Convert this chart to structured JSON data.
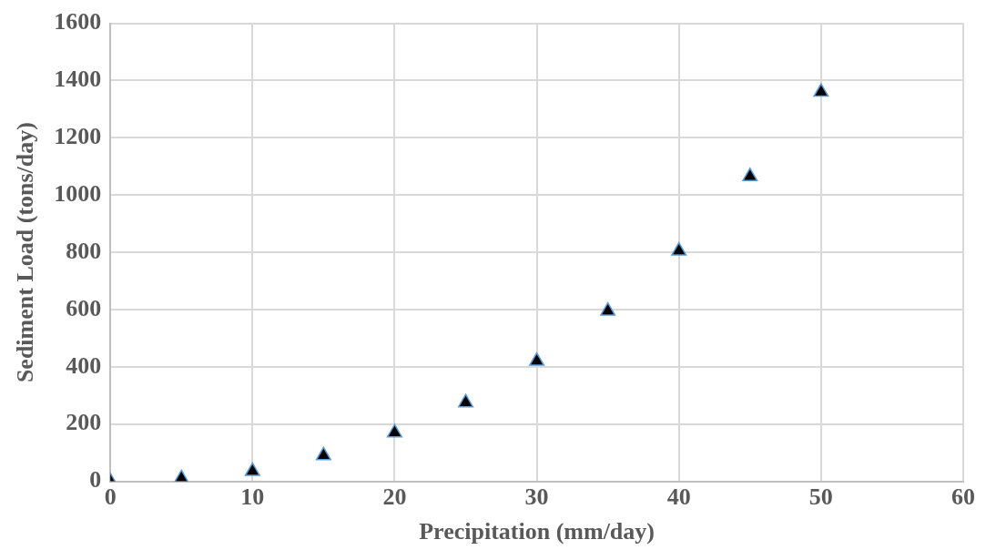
{
  "chart_data": {
    "type": "scatter",
    "xlabel": "Precipitation (mm/day)",
    "ylabel": "Sediment Load (tons/day)",
    "x": [
      0,
      5,
      10,
      15,
      20,
      25,
      30,
      35,
      40,
      45,
      50
    ],
    "series": [
      {
        "color": "#000000",
        "values": [
          0,
          10,
          35,
          90,
          170,
          275,
          420,
          595,
          805,
          1065,
          1360
        ]
      }
    ],
    "xlim": [
      0,
      60
    ],
    "xticks": [
      0,
      10,
      20,
      30,
      40,
      50,
      60
    ],
    "ylim": [
      0,
      1600
    ],
    "yticks": [
      0,
      200,
      400,
      600,
      800,
      1000,
      1200,
      1400,
      1600
    ],
    "grid": true,
    "legend": false,
    "marker": "triangle"
  }
}
